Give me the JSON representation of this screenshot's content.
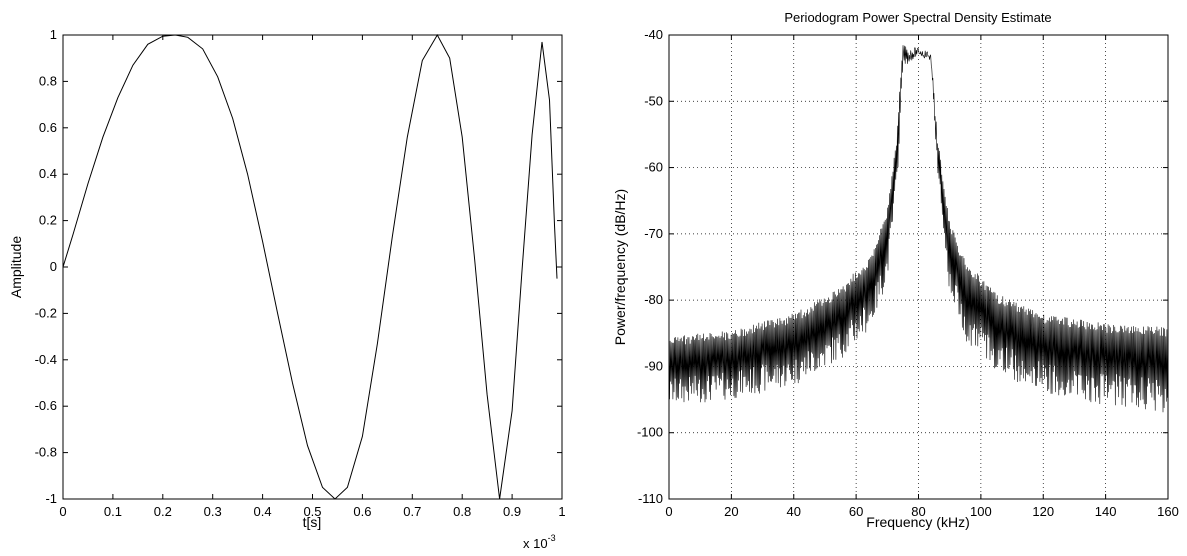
{
  "chart_data": [
    {
      "type": "line",
      "title": "",
      "xlabel": "t[s]",
      "ylabel": "Amplitude",
      "x_multiplier_label": "x 10",
      "x_multiplier_exponent": "-3",
      "xlim": [
        0,
        1
      ],
      "ylim": [
        -1,
        1
      ],
      "grid": false,
      "xticks": [
        0,
        0.1,
        0.2,
        0.3,
        0.4,
        0.5,
        0.6,
        0.7,
        0.8,
        0.9,
        1
      ],
      "xtick_labels": [
        "0",
        "0.1",
        "0.2",
        "0.3",
        "0.4",
        "0.5",
        "0.6",
        "0.7",
        "0.8",
        "0.9",
        "1"
      ],
      "yticks": [
        1,
        0.8,
        0.6,
        0.4,
        0.2,
        0,
        -0.2,
        -0.4,
        -0.6,
        -0.8,
        -1
      ],
      "ytick_labels": [
        "1",
        "0.8",
        "0.6",
        "0.4",
        "0.2",
        "0",
        "-0.2",
        "-0.4",
        "-0.6",
        "-0.8",
        "-1"
      ],
      "series": [
        {
          "x": [
            0,
            0.02,
            0.05,
            0.08,
            0.11,
            0.14,
            0.17,
            0.2,
            0.225,
            0.25,
            0.28,
            0.31,
            0.34,
            0.37,
            0.4,
            0.43,
            0.46,
            0.49,
            0.52,
            0.545,
            0.57,
            0.6,
            0.63,
            0.66,
            0.69,
            0.72,
            0.75,
            0.775,
            0.8,
            0.825,
            0.85,
            0.875,
            0.9,
            0.92,
            0.94,
            0.96,
            0.975,
            0.985,
            0.99
          ],
          "y": [
            0,
            0.14,
            0.36,
            0.56,
            0.73,
            0.87,
            0.96,
            0.995,
            1,
            0.99,
            0.94,
            0.82,
            0.64,
            0.4,
            0.11,
            -0.2,
            -0.5,
            -0.77,
            -0.95,
            -1,
            -0.95,
            -0.73,
            -0.33,
            0.13,
            0.56,
            0.89,
            1,
            0.9,
            0.56,
            0.03,
            -0.55,
            -1,
            -0.62,
            -0.01,
            0.57,
            0.97,
            0.72,
            0.18,
            -0.05
          ]
        }
      ]
    },
    {
      "type": "line",
      "title": "Periodogram Power Spectral Density Estimate",
      "xlabel": "Frequency (kHz)",
      "ylabel": "Power/frequency (dB/Hz)",
      "xlim": [
        0,
        160
      ],
      "ylim": [
        -110,
        -40
      ],
      "grid": true,
      "xticks": [
        0,
        20,
        40,
        60,
        80,
        100,
        120,
        140,
        160
      ],
      "xtick_labels": [
        "0",
        "20",
        "40",
        "60",
        "80",
        "100",
        "120",
        "140",
        "160"
      ],
      "yticks": [
        -40,
        -50,
        -60,
        -70,
        -80,
        -90,
        -100,
        -110
      ],
      "ytick_labels": [
        "-40",
        "-50",
        "-60",
        "-70",
        "-80",
        "-90",
        "-100",
        "-110"
      ],
      "series": [
        {
          "envelope_upper": {
            "x": [
              0,
              20,
              40,
              55,
              65,
              70,
              73,
              75,
              80,
              84,
              86,
              90,
              95,
              105,
              120,
              140,
              160
            ],
            "y": [
              -85.5,
              -84.5,
              -82,
              -78,
              -73,
              -66,
              -55,
              -41.5,
              -42,
              -42.5,
              -55,
              -68,
              -74,
              -79,
              -82,
              -83.5,
              -84
            ]
          },
          "envelope_lower": {
            "x": [
              0,
              20,
              40,
              55,
              65,
              70,
              73,
              75,
              80,
              84,
              86,
              90,
              95,
              105,
              120,
              140,
              160
            ],
            "y": [
              -96,
              -95,
              -93,
              -89,
              -84,
              -77,
              -64,
              -45,
              -43,
              -44,
              -60,
              -79,
              -86,
              -91,
              -94,
              -96,
              -97
            ]
          }
        }
      ]
    }
  ]
}
